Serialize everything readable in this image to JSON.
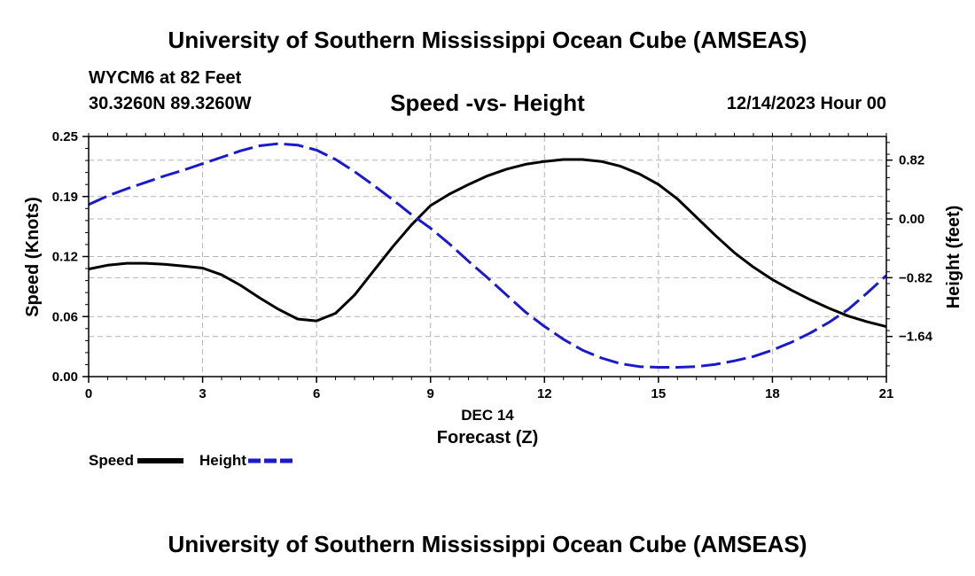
{
  "page": {
    "title_top": "University of Southern Mississippi Ocean Cube (AMSEAS)",
    "title_bottom": "University of Southern Mississippi Ocean Cube (AMSEAS)",
    "station": "WYCM6 at 82 Feet",
    "location": "30.3260N  89.3260W",
    "datetime": "12/14/2023 Hour 00"
  },
  "colors": {
    "speed": "#000000",
    "height": "#1a1acc",
    "grid": "#b3b3b3"
  },
  "chart_data": {
    "type": "line",
    "title": "Speed -vs- Height",
    "xlabel_date": "DEC 14",
    "xlabel": "Forecast (Z)",
    "ylabel_left": "Speed (Knots)",
    "ylabel_right": "Height (feet)",
    "xlim": [
      0,
      21
    ],
    "ylim_left": [
      0,
      0.25
    ],
    "ylim_right": [
      -2.2,
      1.15
    ],
    "x_ticks": [
      "0",
      "3",
      "6",
      "9",
      "12",
      "15",
      "18",
      "21"
    ],
    "x_tick_values": [
      0,
      3,
      6,
      9,
      12,
      15,
      18,
      21
    ],
    "y_left_ticks": [
      "0.00",
      "0.06",
      "0.12",
      "0.19",
      "0.25"
    ],
    "y_left_tick_values": [
      0.0,
      0.0625,
      0.125,
      0.1875,
      0.25
    ],
    "y_right_ticks": [
      "0.82",
      "0.00",
      "−0.82",
      "−1.64"
    ],
    "y_right_tick_values": [
      0.82,
      0.0,
      -0.82,
      -1.64
    ],
    "series": [
      {
        "name": "Speed",
        "axis": "left",
        "style": "solid",
        "x": [
          0,
          0.5,
          1,
          1.5,
          2,
          2.5,
          3,
          3.5,
          4,
          4.5,
          5,
          5.5,
          6,
          6.5,
          7,
          7.5,
          8,
          8.5,
          9,
          9.5,
          10,
          10.5,
          11,
          11.5,
          12,
          12.5,
          13,
          13.5,
          14,
          14.5,
          15,
          15.5,
          16,
          16.5,
          17,
          17.5,
          18,
          18.5,
          19,
          19.5,
          20,
          20.5,
          21
        ],
        "values": [
          0.112,
          0.116,
          0.118,
          0.118,
          0.117,
          0.115,
          0.113,
          0.106,
          0.095,
          0.082,
          0.07,
          0.06,
          0.058,
          0.066,
          0.085,
          0.11,
          0.135,
          0.158,
          0.178,
          0.19,
          0.2,
          0.209,
          0.216,
          0.221,
          0.224,
          0.226,
          0.226,
          0.224,
          0.219,
          0.211,
          0.2,
          0.185,
          0.166,
          0.147,
          0.129,
          0.114,
          0.101,
          0.09,
          0.08,
          0.071,
          0.063,
          0.057,
          0.052
        ]
      },
      {
        "name": "Height",
        "axis": "right",
        "style": "dashed",
        "x": [
          0,
          0.5,
          1,
          1.5,
          2,
          2.5,
          3,
          3.5,
          4,
          4.5,
          5,
          5.5,
          6,
          6.5,
          7,
          7.5,
          8,
          8.5,
          9,
          9.5,
          10,
          10.5,
          11,
          11.5,
          12,
          12.5,
          13,
          13.5,
          14,
          14.5,
          15,
          15.5,
          16,
          16.5,
          17,
          17.5,
          18,
          18.5,
          19,
          19.5,
          20,
          20.5,
          21
        ],
        "values": [
          0.2,
          0.32,
          0.42,
          0.51,
          0.6,
          0.68,
          0.77,
          0.86,
          0.95,
          1.02,
          1.05,
          1.03,
          0.96,
          0.83,
          0.66,
          0.47,
          0.27,
          0.06,
          -0.13,
          -0.35,
          -0.59,
          -0.82,
          -1.06,
          -1.3,
          -1.5,
          -1.68,
          -1.83,
          -1.94,
          -2.02,
          -2.06,
          -2.07,
          -2.07,
          -2.06,
          -2.03,
          -1.98,
          -1.92,
          -1.83,
          -1.72,
          -1.59,
          -1.44,
          -1.26,
          -1.03,
          -0.79
        ]
      }
    ]
  },
  "legend": {
    "speed_label": "Speed",
    "height_label": "Height"
  }
}
